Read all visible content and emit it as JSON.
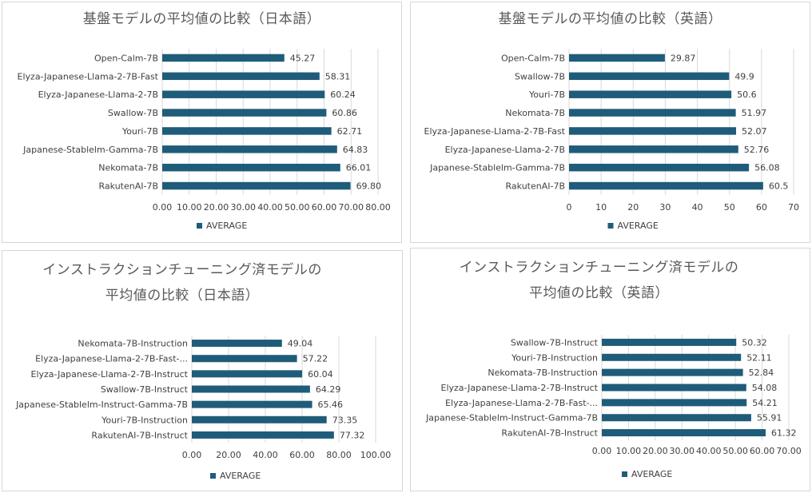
{
  "colors": {
    "bar": "#1f5c7a",
    "grid": "#d9d9d9",
    "text": "#404040",
    "title": "#595959"
  },
  "chart_data": [
    {
      "type": "bar",
      "orientation": "horizontal",
      "title": "基盤モデルの平均値の比較（日本語）",
      "title_lines": [
        "基盤モデルの平均値の比較（日本語）"
      ],
      "categories": [
        "Open-Calm-7B",
        "Elyza-Japanese-Llama-2-7B-Fast",
        "Elyza-Japanese-Llama-2-7B",
        "Swallow-7B",
        "Youri-7B",
        "Japanese-Stablelm-Gamma-7B",
        "Nekomata-7B",
        "RakutenAI-7B"
      ],
      "values": [
        45.27,
        58.31,
        60.24,
        60.86,
        62.71,
        64.83,
        66.01,
        69.8
      ],
      "value_labels": [
        "45.27",
        "58.31",
        "60.24",
        "60.86",
        "62.71",
        "64.83",
        "66.01",
        "69.80"
      ],
      "xlim": [
        0,
        80
      ],
      "xticks": [
        0,
        10,
        20,
        30,
        40,
        50,
        60,
        70,
        80
      ],
      "xtick_labels": [
        "0.00",
        "10.00",
        "20.00",
        "30.00",
        "40.00",
        "50.00",
        "60.00",
        "70.00",
        "80.00"
      ],
      "legend": "AVERAGE",
      "legend_position": "bottom"
    },
    {
      "type": "bar",
      "orientation": "horizontal",
      "title": "基盤モデルの平均値の比較（英語）",
      "title_lines": [
        "基盤モデルの平均値の比較（英語）"
      ],
      "categories": [
        "Open-Calm-7B",
        "Swallow-7B",
        "Youri-7B",
        "Nekomata-7B",
        "Elyza-Japanese-Llama-2-7B-Fast",
        "Elyza-Japanese-Llama-2-7B",
        "Japanese-Stablelm-Gamma-7B",
        "RakutenAI-7B"
      ],
      "values": [
        29.87,
        49.9,
        50.6,
        51.97,
        52.07,
        52.76,
        56.08,
        60.5
      ],
      "value_labels": [
        "29.87",
        "49.9",
        "50.6",
        "51.97",
        "52.07",
        "52.76",
        "56.08",
        "60.5"
      ],
      "xlim": [
        0,
        70
      ],
      "xticks": [
        0,
        10,
        20,
        30,
        40,
        50,
        60,
        70
      ],
      "xtick_labels": [
        "0",
        "10",
        "20",
        "30",
        "40",
        "50",
        "60",
        "70"
      ],
      "legend": "AVERAGE",
      "legend_position": "bottom"
    },
    {
      "type": "bar",
      "orientation": "horizontal",
      "title": "インストラクションチューニング済モデルの平均値の比較（日本語）",
      "title_lines": [
        "インストラクションチューニング済モデルの",
        "平均値の比較（日本語）"
      ],
      "categories": [
        "Nekomata-7B-Instruction",
        "Elyza-Japanese-Llama-2-7B-Fast-...",
        "Elyza-Japanese-Llama-2-7B-Instruct",
        "Swallow-7B-Instruct",
        "Japanese-Stablelm-Instruct-Gamma-7B",
        "Youri-7B-Instruction",
        "RakutenAI-7B-Instruct"
      ],
      "values": [
        49.04,
        57.22,
        60.04,
        64.29,
        65.46,
        73.35,
        77.32
      ],
      "value_labels": [
        "49.04",
        "57.22",
        "60.04",
        "64.29",
        "65.46",
        "73.35",
        "77.32"
      ],
      "xlim": [
        0,
        100
      ],
      "xticks": [
        0,
        20,
        40,
        60,
        80,
        100
      ],
      "xtick_labels": [
        "0.00",
        "20.00",
        "40.00",
        "60.00",
        "80.00",
        "100.00"
      ],
      "legend": "AVERAGE",
      "legend_position": "bottom"
    },
    {
      "type": "bar",
      "orientation": "horizontal",
      "title": "インストラクションチューニング済モデルの平均値の比較（英語）",
      "title_lines": [
        "インストラクションチューニング済モデルの",
        "平均値の比較（英語）"
      ],
      "categories": [
        "Swallow-7B-Instruct",
        "Youri-7B-Instruction",
        "Nekomata-7B-Instruction",
        "Elyza-Japanese-Llama-2-7B-Instruct",
        "Elyza-Japanese-Llama-2-7B-Fast-...",
        "Japanese-Stablelm-Instruct-Gamma-7B",
        "RakutenAI-7B-Instruct"
      ],
      "values": [
        50.32,
        52.11,
        52.84,
        54.08,
        54.21,
        55.91,
        61.32
      ],
      "value_labels": [
        "50.32",
        "52.11",
        "52.84",
        "54.08",
        "54.21",
        "55.91",
        "61.32"
      ],
      "xlim": [
        0,
        70
      ],
      "xticks": [
        0,
        10,
        20,
        30,
        40,
        50,
        60,
        70
      ],
      "xtick_labels": [
        "0.00",
        "10.00",
        "20.00",
        "30.00",
        "40.00",
        "50.00",
        "60.00",
        "70.00"
      ],
      "legend": "AVERAGE",
      "legend_position": "bottom"
    }
  ]
}
